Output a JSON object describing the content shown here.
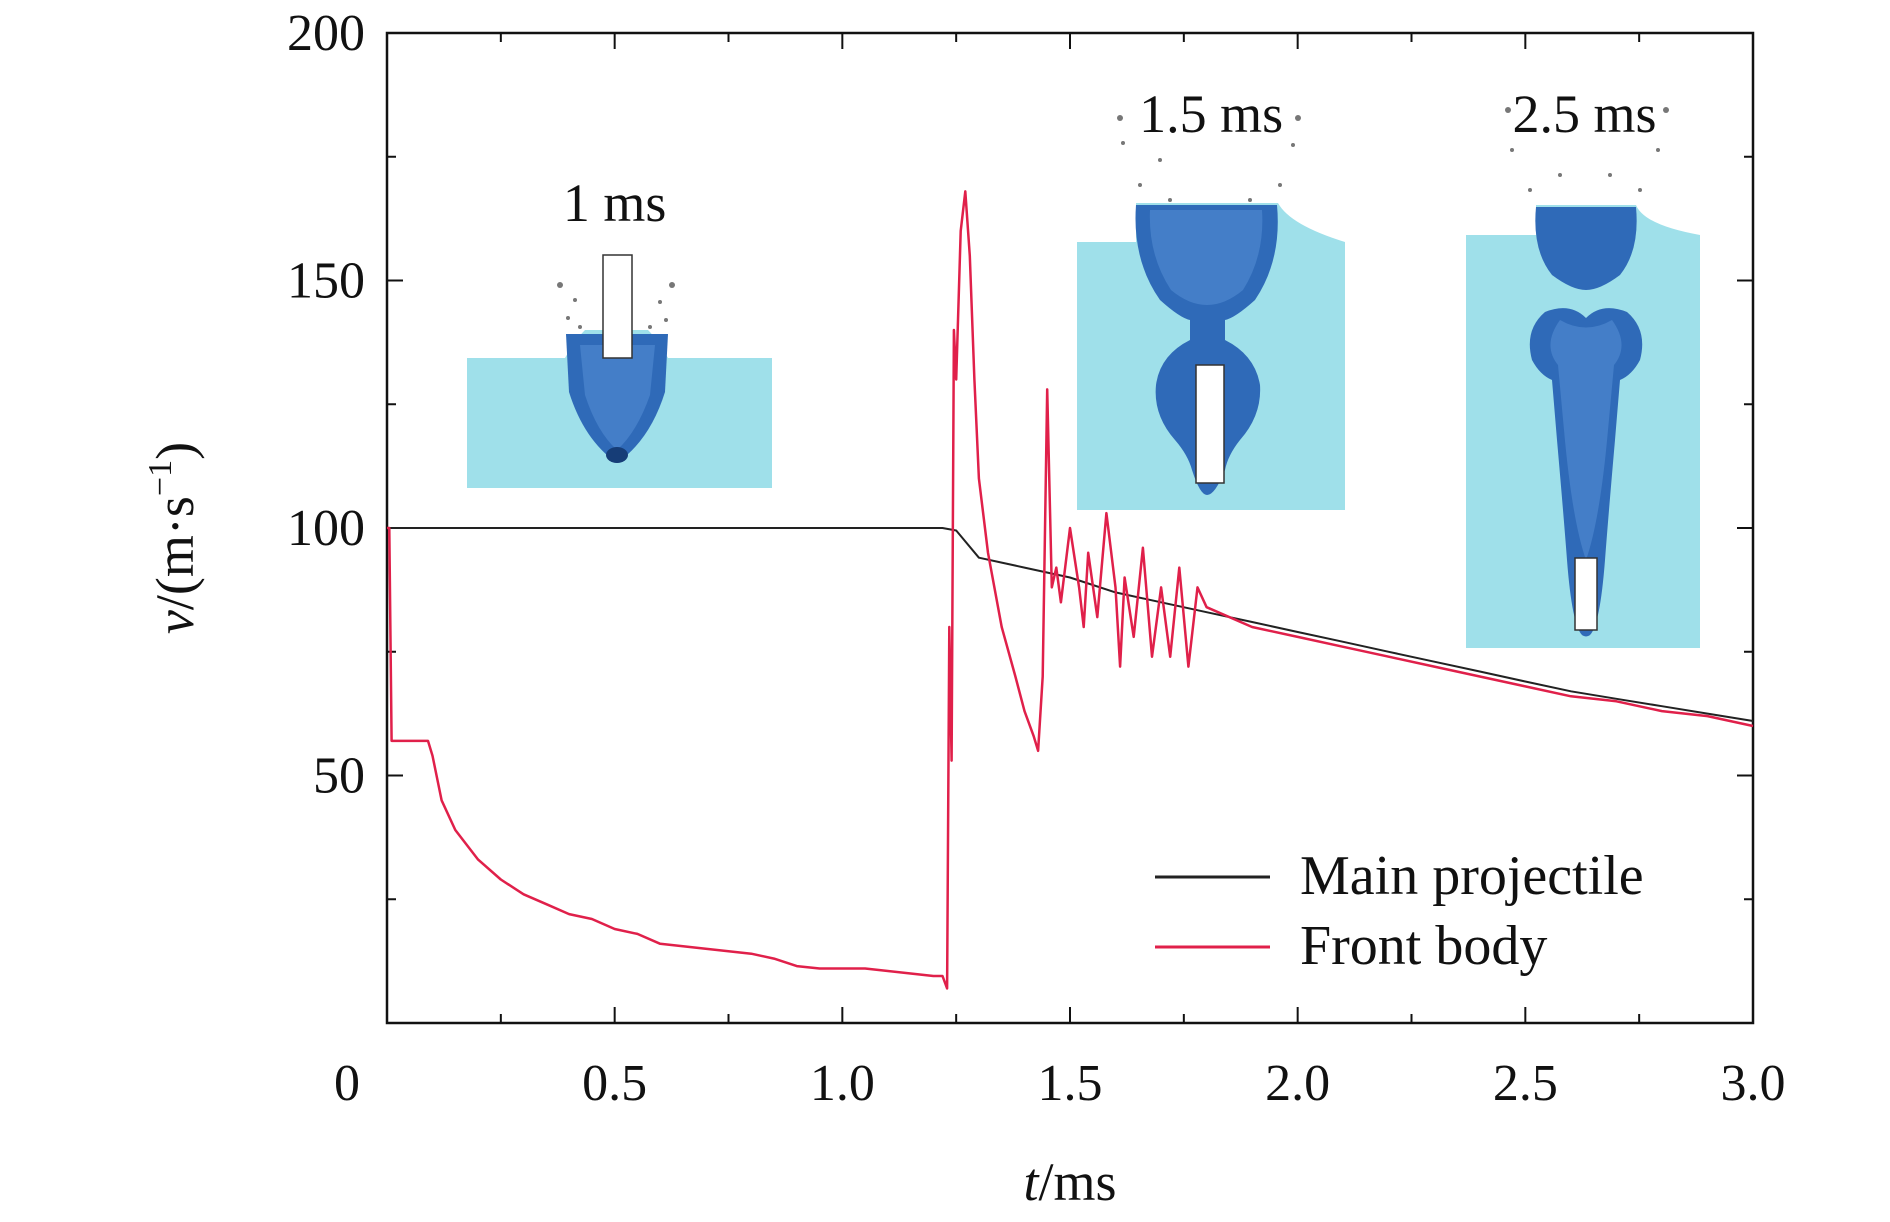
{
  "chart_data": {
    "type": "line",
    "xlabel": "t/ms",
    "xlabel_italic": "t",
    "xlabel_unit": "/ms",
    "ylabel_italic": "v",
    "ylabel_unit": "/(m·s",
    "ylabel_exp": "−1",
    "ylabel_close": ")",
    "xlim": [
      0,
      3.0
    ],
    "ylim": [
      0,
      200
    ],
    "x_ticks": [
      0,
      0.5,
      1.0,
      1.5,
      2.0,
      2.5,
      3.0
    ],
    "x_tick_labels": [
      "0",
      "0.5",
      "1.0",
      "1.5",
      "2.0",
      "2.5",
      "3.0"
    ],
    "y_ticks": [
      50,
      100,
      150,
      200
    ],
    "y_tick_labels": [
      "50",
      "100",
      "150",
      "200"
    ],
    "grid": false,
    "legend_position": "bottom-right",
    "series": [
      {
        "name": "Main projectile",
        "color": "#222222",
        "x": [
          0,
          1.22,
          1.25,
          1.3,
          1.35,
          1.4,
          1.5,
          1.6,
          1.7,
          1.8,
          1.9,
          2.0,
          2.1,
          2.2,
          2.3,
          2.4,
          2.5,
          2.6,
          2.7,
          2.8,
          2.9,
          3.0
        ],
        "y": [
          100,
          100,
          99.5,
          94,
          93,
          92,
          90,
          87,
          85,
          83,
          81,
          79,
          77,
          75,
          73,
          71,
          69,
          67,
          65.5,
          64,
          62.5,
          61
        ]
      },
      {
        "name": "Front body",
        "color": "#e0204a",
        "x": [
          0,
          0.005,
          0.01,
          0.09,
          0.1,
          0.12,
          0.15,
          0.2,
          0.25,
          0.3,
          0.35,
          0.4,
          0.45,
          0.5,
          0.55,
          0.6,
          0.65,
          0.7,
          0.75,
          0.8,
          0.85,
          0.9,
          0.95,
          1.0,
          1.05,
          1.1,
          1.15,
          1.2,
          1.22,
          1.23,
          1.235,
          1.24,
          1.245,
          1.25,
          1.26,
          1.27,
          1.28,
          1.29,
          1.3,
          1.32,
          1.35,
          1.38,
          1.4,
          1.42,
          1.43,
          1.44,
          1.45,
          1.46,
          1.47,
          1.48,
          1.5,
          1.52,
          1.53,
          1.54,
          1.56,
          1.58,
          1.6,
          1.61,
          1.62,
          1.64,
          1.66,
          1.68,
          1.7,
          1.72,
          1.74,
          1.76,
          1.78,
          1.8,
          1.9,
          2.0,
          2.1,
          2.2,
          2.3,
          2.4,
          2.5,
          2.6,
          2.7,
          2.8,
          2.9,
          3.0
        ],
        "y": [
          100,
          100,
          57,
          57,
          54,
          45,
          39,
          33,
          29,
          26,
          24,
          22,
          21,
          19,
          18,
          16,
          15.5,
          15,
          14.5,
          14,
          13,
          11.5,
          11,
          11,
          11,
          10.5,
          10,
          9.5,
          9.5,
          7,
          80,
          53,
          140,
          130,
          160,
          168,
          155,
          130,
          110,
          95,
          80,
          70,
          63,
          58,
          55,
          70,
          128,
          88,
          92,
          85,
          100,
          88,
          80,
          95,
          82,
          103,
          88,
          72,
          90,
          78,
          96,
          74,
          88,
          74,
          92,
          72,
          88,
          84,
          80,
          78,
          76,
          74,
          72,
          70,
          68,
          66,
          65,
          63,
          62,
          60
        ]
      }
    ],
    "annotations": [
      {
        "text": "1 ms",
        "at_x": 0.5,
        "at_y": 162
      },
      {
        "text": "1.5 ms",
        "at_x": 1.81,
        "at_y": 180
      },
      {
        "text": "2.5 ms",
        "at_x": 2.63,
        "at_y": 180
      }
    ]
  }
}
